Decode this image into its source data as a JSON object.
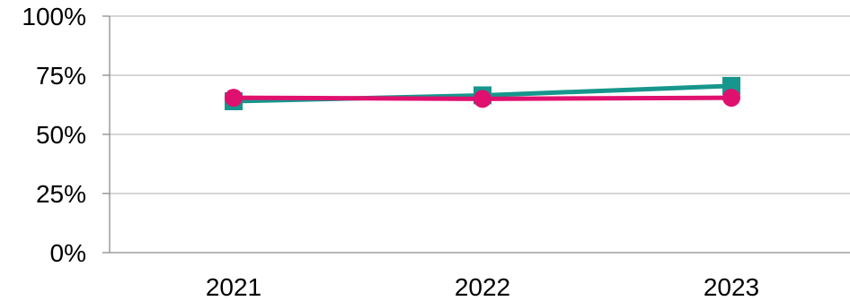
{
  "chart_data": {
    "type": "line",
    "categories": [
      "2021",
      "2022",
      "2023"
    ],
    "y_ticks": [
      "0%",
      "25%",
      "50%",
      "75%",
      "100%"
    ],
    "ylim": [
      0,
      100
    ],
    "y_unit": "%",
    "grid": "horizontal",
    "legend": "none",
    "series": [
      {
        "color": "#16968c",
        "marker": "square",
        "values": [
          64,
          66.5,
          70.5
        ]
      },
      {
        "color": "#e0106e",
        "marker": "circle",
        "values": [
          65.5,
          65,
          65.5
        ]
      }
    ]
  }
}
